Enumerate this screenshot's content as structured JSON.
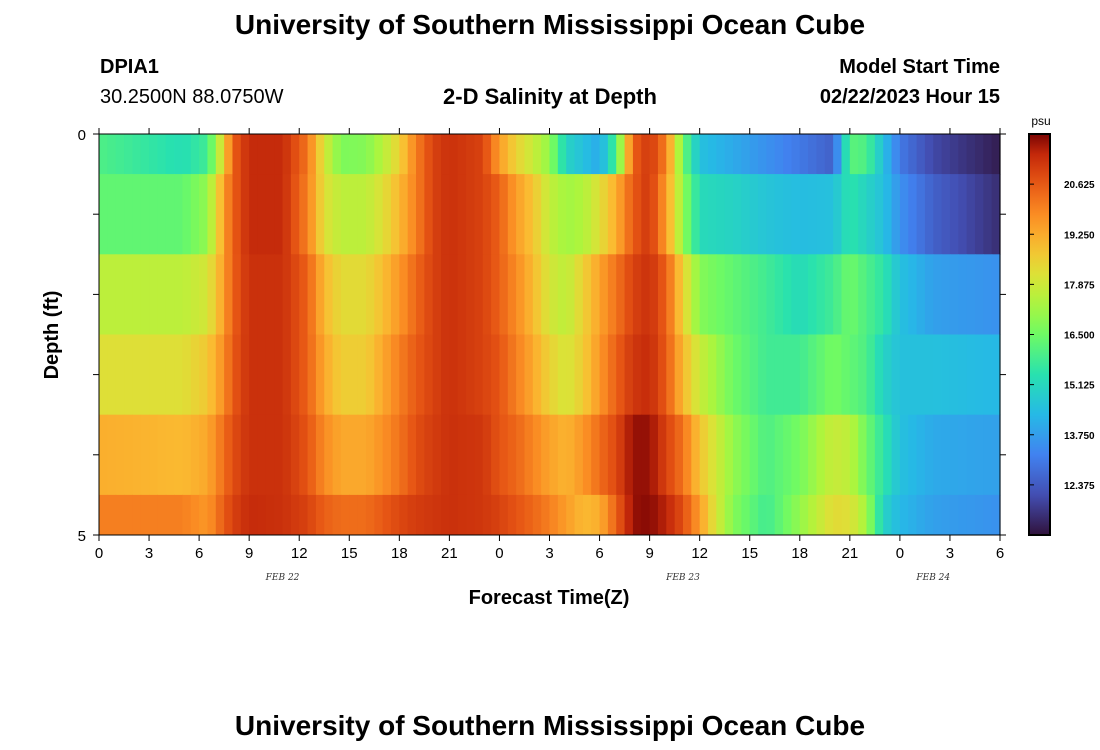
{
  "page": {
    "title": "University of Southern Mississippi Ocean Cube",
    "station": "DPIA1",
    "coords": "30.2500N  88.0750W",
    "subtitle": "2-D Salinity at Depth",
    "model_start_label": "Model Start Time",
    "model_start_value": "02/22/2023 Hour 15",
    "footer_title": "University of Southern Mississippi Ocean Cube"
  },
  "chart_data": {
    "type": "heatmap",
    "title": "2-D Salinity at Depth",
    "xlabel": "Forecast Time(Z)",
    "ylabel": "Depth (ft)",
    "x_tick_labels": [
      "0",
      "3",
      "6",
      "9",
      "12",
      "15",
      "18",
      "21",
      "0",
      "3",
      "6",
      "9",
      "12",
      "15",
      "18",
      "21",
      "0",
      "3",
      "6"
    ],
    "x_range_hours": [
      0,
      54
    ],
    "date_labels": [
      {
        "text": "FEB 22",
        "hour": 11
      },
      {
        "text": "FEB 23",
        "hour": 35
      },
      {
        "text": "FEB 24",
        "hour": 50
      }
    ],
    "y_tick_labels": [
      "0",
      "5"
    ],
    "y_range": [
      0,
      5
    ],
    "colorbar": {
      "unit": "psu",
      "min": 11.0,
      "max": 22.0,
      "tick_labels": [
        "20.625",
        "19.250",
        "17.875",
        "16.500",
        "15.125",
        "13.750",
        "12.375"
      ]
    },
    "depth_levels_ft": [
      0.25,
      1.0,
      2.0,
      3.0,
      4.0,
      4.75
    ],
    "band_depths_ft": [
      [
        0,
        0.5
      ],
      [
        0.5,
        1.5
      ],
      [
        1.5,
        2.5
      ],
      [
        2.5,
        3.5
      ],
      [
        3.5,
        4.5
      ],
      [
        4.5,
        5
      ]
    ],
    "salinity_profiles": [
      [
        [
          0,
          16.0
        ],
        [
          5,
          15.3
        ],
        [
          6.5,
          15.8
        ],
        [
          7.5,
          18.5
        ],
        [
          8,
          20.5
        ],
        [
          9,
          21.4
        ],
        [
          11,
          21.4
        ],
        [
          12.5,
          20.2
        ],
        [
          13.5,
          18.0
        ],
        [
          14.5,
          16.7
        ],
        [
          16,
          16.8
        ],
        [
          17,
          17.5
        ],
        [
          18,
          18.5
        ],
        [
          19,
          20.0
        ],
        [
          20,
          21.0
        ],
        [
          21,
          21.3
        ],
        [
          23,
          21.0
        ],
        [
          24,
          19.5
        ],
        [
          25,
          18.5
        ],
        [
          26,
          17.8
        ],
        [
          27,
          17.0
        ],
        [
          28,
          15.0
        ],
        [
          29,
          14.5
        ],
        [
          30,
          14.0
        ],
        [
          31,
          16.0
        ],
        [
          32,
          20.5
        ],
        [
          33,
          21.2
        ],
        [
          34,
          20.0
        ],
        [
          35,
          16.5
        ],
        [
          36,
          14.5
        ],
        [
          38,
          14.0
        ],
        [
          40,
          13.5
        ],
        [
          42,
          13.0
        ],
        [
          44,
          12.5
        ],
        [
          45,
          16.2
        ],
        [
          46,
          16.0
        ],
        [
          47,
          14.5
        ],
        [
          48,
          13.0
        ],
        [
          50,
          12.0
        ],
        [
          54,
          11.2
        ]
      ],
      [
        [
          0,
          16.3
        ],
        [
          5,
          16.3
        ],
        [
          6.5,
          17.0
        ],
        [
          7.5,
          19.5
        ],
        [
          8,
          20.5
        ],
        [
          9,
          21.4
        ],
        [
          11,
          21.4
        ],
        [
          12.5,
          20.0
        ],
        [
          13.5,
          18.2
        ],
        [
          14.5,
          17.6
        ],
        [
          16,
          17.6
        ],
        [
          17,
          18.2
        ],
        [
          18,
          19.0
        ],
        [
          19,
          20.0
        ],
        [
          20,
          21.0
        ],
        [
          21,
          21.3
        ],
        [
          23,
          21.0
        ],
        [
          24,
          20.5
        ],
        [
          25,
          19.5
        ],
        [
          26,
          18.8
        ],
        [
          27,
          17.7
        ],
        [
          28,
          17.2
        ],
        [
          29,
          17.4
        ],
        [
          30,
          18.2
        ],
        [
          31,
          19.2
        ],
        [
          32,
          20.6
        ],
        [
          33,
          21.2
        ],
        [
          34,
          19.5
        ],
        [
          35,
          17.0
        ],
        [
          36,
          15.2
        ],
        [
          38,
          15.0
        ],
        [
          40,
          14.6
        ],
        [
          42,
          14.4
        ],
        [
          44,
          14.5
        ],
        [
          45,
          15.5
        ],
        [
          46,
          15.0
        ],
        [
          47,
          14.5
        ],
        [
          48,
          13.5
        ],
        [
          50,
          12.5
        ],
        [
          54,
          11.5
        ]
      ],
      [
        [
          0,
          17.6
        ],
        [
          5,
          17.6
        ],
        [
          6.5,
          18.0
        ],
        [
          7.5,
          19.5
        ],
        [
          8,
          20.5
        ],
        [
          9,
          21.3
        ],
        [
          11,
          21.3
        ],
        [
          12.5,
          20.5
        ],
        [
          13.5,
          19.0
        ],
        [
          14.5,
          18.3
        ],
        [
          16,
          18.3
        ],
        [
          17,
          18.9
        ],
        [
          18,
          19.6
        ],
        [
          19,
          20.4
        ],
        [
          20,
          21.0
        ],
        [
          21,
          21.3
        ],
        [
          23,
          21.0
        ],
        [
          24,
          20.5
        ],
        [
          25,
          19.8
        ],
        [
          26,
          19.0
        ],
        [
          27,
          18.0
        ],
        [
          28,
          17.6
        ],
        [
          29,
          18.5
        ],
        [
          30,
          19.4
        ],
        [
          31,
          20.2
        ],
        [
          32,
          21.0
        ],
        [
          33,
          21.3
        ],
        [
          34,
          20.5
        ],
        [
          35,
          18.5
        ],
        [
          36,
          16.8
        ],
        [
          38,
          16.3
        ],
        [
          40,
          15.8
        ],
        [
          42,
          15.2
        ],
        [
          44,
          15.8
        ],
        [
          45,
          16.5
        ],
        [
          46,
          16.0
        ],
        [
          47,
          15.5
        ],
        [
          48,
          14.5
        ],
        [
          50,
          13.8
        ],
        [
          54,
          13.5
        ]
      ],
      [
        [
          0,
          18.2
        ],
        [
          5,
          18.2
        ],
        [
          6.5,
          18.7
        ],
        [
          7.5,
          19.8
        ],
        [
          8,
          20.6
        ],
        [
          9,
          21.3
        ],
        [
          11,
          21.3
        ],
        [
          12.5,
          20.5
        ],
        [
          13.5,
          19.3
        ],
        [
          14.5,
          18.6
        ],
        [
          16,
          18.6
        ],
        [
          17,
          19.3
        ],
        [
          18,
          20.0
        ],
        [
          19,
          20.6
        ],
        [
          20,
          21.0
        ],
        [
          21,
          21.3
        ],
        [
          23,
          21.0
        ],
        [
          24,
          20.7
        ],
        [
          25,
          20.0
        ],
        [
          26,
          19.3
        ],
        [
          27,
          18.5
        ],
        [
          28,
          18.0
        ],
        [
          29,
          18.6
        ],
        [
          30,
          19.6
        ],
        [
          31,
          20.5
        ],
        [
          32,
          21.2
        ],
        [
          33,
          21.4
        ],
        [
          34,
          20.6
        ],
        [
          35,
          19.0
        ],
        [
          36,
          17.8
        ],
        [
          38,
          16.5
        ],
        [
          40,
          15.8
        ],
        [
          42,
          15.8
        ],
        [
          44,
          16.6
        ],
        [
          45,
          16.3
        ],
        [
          46,
          16.0
        ],
        [
          47,
          15.0
        ],
        [
          48,
          14.5
        ],
        [
          50,
          14.5
        ],
        [
          54,
          14.3
        ]
      ],
      [
        [
          0,
          19.2
        ],
        [
          5,
          19.0
        ],
        [
          6.5,
          19.3
        ],
        [
          7.5,
          20.3
        ],
        [
          8,
          20.8
        ],
        [
          9,
          21.3
        ],
        [
          11,
          21.3
        ],
        [
          12.5,
          20.7
        ],
        [
          13.5,
          19.8
        ],
        [
          14.5,
          19.3
        ],
        [
          16,
          19.3
        ],
        [
          17,
          19.7
        ],
        [
          18,
          20.2
        ],
        [
          19,
          20.8
        ],
        [
          20,
          21.1
        ],
        [
          21,
          21.3
        ],
        [
          23,
          21.2
        ],
        [
          24,
          20.7
        ],
        [
          25,
          20.4
        ],
        [
          26,
          19.9
        ],
        [
          27,
          19.4
        ],
        [
          28,
          19.1
        ],
        [
          29,
          19.6
        ],
        [
          30,
          20.3
        ],
        [
          31,
          20.9
        ],
        [
          32,
          21.8
        ],
        [
          33,
          21.8
        ],
        [
          34,
          21.0
        ],
        [
          35,
          20.2
        ],
        [
          36,
          18.8
        ],
        [
          38,
          17.0
        ],
        [
          40,
          16.0
        ],
        [
          42,
          16.6
        ],
        [
          44,
          17.8
        ],
        [
          45,
          17.6
        ],
        [
          46,
          16.5
        ],
        [
          47,
          15.5
        ],
        [
          48,
          14.5
        ],
        [
          50,
          14.0
        ],
        [
          54,
          13.8
        ]
      ],
      [
        [
          0,
          20.0
        ],
        [
          5,
          20.0
        ],
        [
          6.5,
          19.6
        ],
        [
          7.5,
          20.6
        ],
        [
          8,
          21.0
        ],
        [
          9,
          21.4
        ],
        [
          11,
          21.3
        ],
        [
          12.5,
          21.0
        ],
        [
          13.5,
          20.5
        ],
        [
          14.5,
          20.3
        ],
        [
          16,
          20.3
        ],
        [
          17,
          20.6
        ],
        [
          18,
          20.9
        ],
        [
          19,
          21.1
        ],
        [
          20,
          21.2
        ],
        [
          21,
          21.3
        ],
        [
          23,
          21.2
        ],
        [
          24,
          21.0
        ],
        [
          25,
          20.7
        ],
        [
          26,
          20.4
        ],
        [
          27,
          20.0
        ],
        [
          28,
          19.5
        ],
        [
          29,
          19.0
        ],
        [
          30,
          19.2
        ],
        [
          31,
          20.5
        ],
        [
          32,
          21.8
        ],
        [
          33,
          21.9
        ],
        [
          34,
          21.5
        ],
        [
          35,
          20.8
        ],
        [
          36,
          19.5
        ],
        [
          37,
          18.0
        ],
        [
          38,
          16.8
        ],
        [
          40,
          15.8
        ],
        [
          42,
          17.0
        ],
        [
          44,
          18.3
        ],
        [
          45,
          18.2
        ],
        [
          46,
          17.2
        ],
        [
          47,
          15.0
        ],
        [
          48,
          14.3
        ],
        [
          50,
          13.8
        ],
        [
          54,
          13.5
        ]
      ]
    ]
  }
}
